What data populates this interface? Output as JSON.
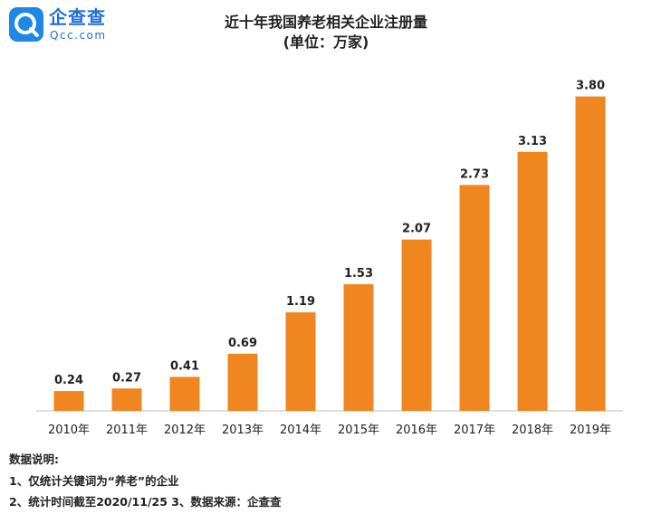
{
  "brand": {
    "name": "企查查",
    "site": "Qcc.com",
    "icon": "qcc-logo-icon",
    "color": "#1e88e5"
  },
  "header": {
    "title": "近十年我国养老相关企业注册量",
    "subtitle": "(单位：万家)"
  },
  "chart_data": {
    "type": "bar",
    "title": "近十年我国养老相关企业注册量",
    "subtitle": "(单位：万家)",
    "unit": "万家",
    "categories": [
      "2010年",
      "2011年",
      "2012年",
      "2013年",
      "2014年",
      "2015年",
      "2016年",
      "2017年",
      "2018年",
      "2019年"
    ],
    "values": [
      0.24,
      0.27,
      0.41,
      0.69,
      1.19,
      1.53,
      2.07,
      2.73,
      3.13,
      3.8
    ],
    "value_labels": [
      "0.24",
      "0.27",
      "0.41",
      "0.69",
      "1.19",
      "1.53",
      "2.07",
      "2.73",
      "3.13",
      "3.80"
    ],
    "ylim": [
      0,
      4.2
    ],
    "grid": false,
    "legend": "none",
    "bar_color": "#ef8620"
  },
  "notes": {
    "heading": "数据说明:",
    "line1": "1、仅统计关键词为“养老”的企业",
    "line2": "2、统计时间截至2020/11/25  3、数据来源：企查查"
  }
}
